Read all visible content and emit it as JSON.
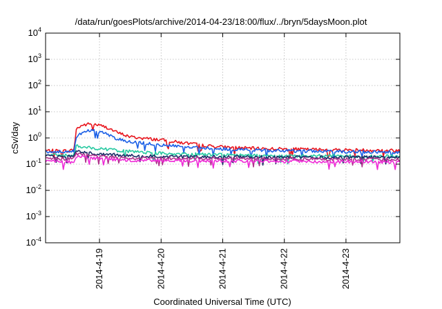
{
  "chart_data": {
    "type": "line",
    "title": "/data/run/goesPlots/archive/2014-04-23/18:00/flux/../bryn/5daysMoon.plot",
    "xlabel": "Coordinated Universal Time (UTC)",
    "ylabel": "cSv/day",
    "y_scale": "log",
    "ylim": [
      0.0001,
      10000
    ],
    "y_ticks": [
      {
        "value": 0.0001,
        "base": "10",
        "exp": "-4"
      },
      {
        "value": 0.001,
        "base": "10",
        "exp": "-3"
      },
      {
        "value": 0.01,
        "base": "10",
        "exp": "-2"
      },
      {
        "value": 0.1,
        "base": "10",
        "exp": "-1"
      },
      {
        "value": 1,
        "base": "10",
        "exp": "0"
      },
      {
        "value": 10,
        "base": "10",
        "exp": "1"
      },
      {
        "value": 100,
        "base": "10",
        "exp": "2"
      },
      {
        "value": 1000,
        "base": "10",
        "exp": "3"
      },
      {
        "value": 10000,
        "base": "10",
        "exp": "4"
      }
    ],
    "xlim": [
      "2014-04-18 03:00",
      "2014-04-23 21:00"
    ],
    "x_ticks": [
      {
        "value": "2014-04-19 00:00",
        "label": "2014-4-19"
      },
      {
        "value": "2014-04-20 00:00",
        "label": "2014-4-20"
      },
      {
        "value": "2014-04-21 00:00",
        "label": "2014-4-21"
      },
      {
        "value": "2014-04-22 00:00",
        "label": "2014-4-22"
      },
      {
        "value": "2014-04-23 00:00",
        "label": "2014-4-23"
      }
    ],
    "grid": true,
    "legend": "none",
    "series": [
      {
        "color": "#e8141c",
        "points": [
          [
            "2014-04-18 03:00",
            0.33
          ],
          [
            "2014-04-18 12:00",
            0.32
          ],
          [
            "2014-04-18 14:00",
            0.35
          ],
          [
            "2014-04-18 15:00",
            2.2
          ],
          [
            "2014-04-18 17:00",
            3.0
          ],
          [
            "2014-04-18 20:00",
            3.4
          ],
          [
            "2014-04-18 23:00",
            3.2
          ],
          [
            "2014-04-19 03:00",
            2.5
          ],
          [
            "2014-04-19 07:00",
            1.6
          ],
          [
            "2014-04-19 12:00",
            1.1
          ],
          [
            "2014-04-19 18:00",
            0.95
          ],
          [
            "2014-04-20 00:00",
            0.85
          ],
          [
            "2014-04-20 06:00",
            0.7
          ],
          [
            "2014-04-20 12:00",
            0.6
          ],
          [
            "2014-04-20 18:00",
            0.5
          ],
          [
            "2014-04-21 00:00",
            0.45
          ],
          [
            "2014-04-21 12:00",
            0.4
          ],
          [
            "2014-04-22 00:00",
            0.38
          ],
          [
            "2014-04-22 12:00",
            0.36
          ],
          [
            "2014-04-23 00:00",
            0.35
          ],
          [
            "2014-04-23 12:00",
            0.34
          ],
          [
            "2014-04-23 21:00",
            0.33
          ]
        ]
      },
      {
        "color": "#1a5fe6",
        "points": [
          [
            "2014-04-18 03:00",
            0.3
          ],
          [
            "2014-04-18 12:00",
            0.29
          ],
          [
            "2014-04-18 14:00",
            0.31
          ],
          [
            "2014-04-18 15:00",
            1.2
          ],
          [
            "2014-04-18 18:00",
            1.8
          ],
          [
            "2014-04-18 22:00",
            1.9
          ],
          [
            "2014-04-19 02:00",
            1.5
          ],
          [
            "2014-04-19 06:00",
            1.0
          ],
          [
            "2014-04-19 10:00",
            0.75
          ],
          [
            "2014-04-19 18:00",
            0.62
          ],
          [
            "2014-04-20 00:00",
            0.55
          ],
          [
            "2014-04-20 12:00",
            0.45
          ],
          [
            "2014-04-21 00:00",
            0.38
          ],
          [
            "2014-04-21 12:00",
            0.35
          ],
          [
            "2014-04-22 00:00",
            0.32
          ],
          [
            "2014-04-23 00:00",
            0.3
          ],
          [
            "2014-04-23 21:00",
            0.29
          ]
        ]
      },
      {
        "color": "#26c9a0",
        "points": [
          [
            "2014-04-18 03:00",
            0.22
          ],
          [
            "2014-04-18 14:00",
            0.22
          ],
          [
            "2014-04-18 15:00",
            0.5
          ],
          [
            "2014-04-18 20:00",
            0.42
          ],
          [
            "2014-04-19 06:00",
            0.34
          ],
          [
            "2014-04-19 18:00",
            0.28
          ],
          [
            "2014-04-20 12:00",
            0.24
          ],
          [
            "2014-04-21 12:00",
            0.21
          ],
          [
            "2014-04-23 21:00",
            0.2
          ]
        ]
      },
      {
        "color": "#1b2a66",
        "points": [
          [
            "2014-04-18 03:00",
            0.2
          ],
          [
            "2014-04-18 14:00",
            0.2
          ],
          [
            "2014-04-18 15:00",
            0.3
          ],
          [
            "2014-04-18 20:00",
            0.26
          ],
          [
            "2014-04-19 12:00",
            0.21
          ],
          [
            "2014-04-20 12:00",
            0.19
          ],
          [
            "2014-04-23 21:00",
            0.18
          ]
        ]
      },
      {
        "color": "#b0328c",
        "points": [
          [
            "2014-04-18 03:00",
            0.16
          ],
          [
            "2014-04-18 14:00",
            0.16
          ],
          [
            "2014-04-18 15:00",
            0.26
          ],
          [
            "2014-04-18 20:00",
            0.21
          ],
          [
            "2014-04-19 12:00",
            0.17
          ],
          [
            "2014-04-23 21:00",
            0.15
          ]
        ]
      },
      {
        "color": "#ee2ad6",
        "points": [
          [
            "2014-04-18 03:00",
            0.13
          ],
          [
            "2014-04-18 14:00",
            0.12
          ],
          [
            "2014-04-18 15:00",
            0.21
          ],
          [
            "2014-04-18 20:00",
            0.17
          ],
          [
            "2014-04-19 12:00",
            0.14
          ],
          [
            "2014-04-23 21:00",
            0.12
          ]
        ]
      }
    ]
  }
}
